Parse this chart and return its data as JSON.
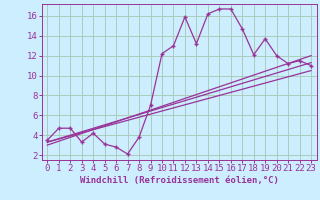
{
  "xlabel": "Windchill (Refroidissement éolien,°C)",
  "background_color": "#cceeff",
  "grid_color": "#aaccbb",
  "line_color": "#993399",
  "xlim": [
    -0.5,
    23.5
  ],
  "ylim": [
    1.5,
    17.2
  ],
  "xticks": [
    0,
    1,
    2,
    3,
    4,
    5,
    6,
    7,
    8,
    9,
    10,
    11,
    12,
    13,
    14,
    15,
    16,
    17,
    18,
    19,
    20,
    21,
    22,
    23
  ],
  "yticks": [
    2,
    4,
    6,
    8,
    10,
    12,
    14,
    16
  ],
  "scatter_x": [
    0,
    1,
    2,
    3,
    4,
    5,
    6,
    7,
    8,
    9,
    10,
    11,
    12,
    13,
    14,
    15,
    16,
    17,
    18,
    19,
    20,
    21,
    22,
    23
  ],
  "scatter_y": [
    3.5,
    4.7,
    4.7,
    3.3,
    4.2,
    3.1,
    2.8,
    2.1,
    3.8,
    7.0,
    12.2,
    13.0,
    15.9,
    13.2,
    16.2,
    16.7,
    16.7,
    14.7,
    12.1,
    13.7,
    12.0,
    11.2,
    11.5,
    11.0
  ],
  "line1_x": [
    0,
    23
  ],
  "line1_y": [
    3.3,
    11.3
  ],
  "line2_x": [
    0,
    23
  ],
  "line2_y": [
    3.3,
    10.5
  ],
  "line3_x": [
    0,
    23
  ],
  "line3_y": [
    3.0,
    12.0
  ],
  "marker_size": 3.5,
  "font_color": "#993399",
  "tick_fontsize": 6.5,
  "label_fontsize": 6.5
}
